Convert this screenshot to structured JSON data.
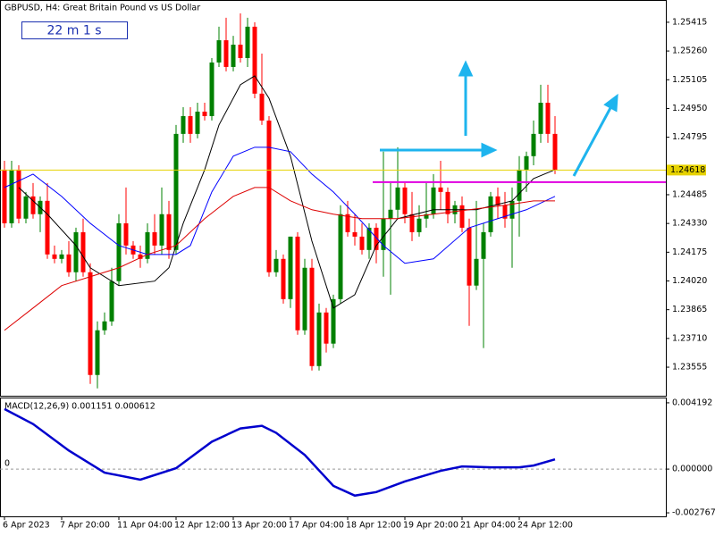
{
  "chart_data": [
    {
      "type": "candlestick",
      "title": "GBPUSD, H4:  Great Britain Pound vs US Dollar",
      "timer": "22 m 1 s",
      "categories": [
        "6 Apr 2023",
        null,
        null,
        null,
        null,
        null,
        null,
        null,
        "7 Apr 20:00",
        null,
        null,
        null,
        null,
        null,
        null,
        null,
        "11 Apr 04:00",
        null,
        null,
        null,
        null,
        null,
        null,
        null,
        "12 Apr 12:00",
        null,
        null,
        null,
        null,
        null,
        null,
        null,
        "13 Apr 20:00",
        null,
        null,
        null,
        null,
        null,
        null,
        null,
        "17 Apr 04:00",
        null,
        null,
        null,
        null,
        null,
        null,
        null,
        "18 Apr 12:00",
        null,
        null,
        null,
        null,
        null,
        null,
        null,
        "19 Apr 20:00",
        null,
        null,
        null,
        null,
        null,
        null,
        null,
        "21 Apr 04:00",
        null,
        null,
        null,
        null,
        null,
        null,
        null,
        "24 Apr 12:00",
        null,
        null,
        null,
        null,
        null
      ],
      "open": [
        1.2462,
        1.24331,
        1.2462,
        1.24356,
        1.24476,
        1.2438,
        1.24452,
        1.24163,
        1.24139,
        1.24163,
        1.24067,
        1.24283,
        1.24067,
        1.23513,
        1.23754,
        1.23802,
        1.24019,
        1.24331,
        1.24211,
        1.24163,
        1.24139,
        1.24283,
        1.24211,
        1.2438,
        1.24187,
        1.24813,
        1.24909,
        1.24813,
        1.24933,
        1.24909,
        1.25198,
        1.25318,
        1.25174,
        1.25294,
        1.25222,
        1.25391,
        1.2503,
        1.24885,
        1.24067,
        1.24139,
        1.23922,
        1.24259,
        1.23754,
        1.24091,
        1.23561,
        1.2385,
        1.23682,
        1.23922,
        1.2438,
        1.24283,
        1.24259,
        1.24187,
        1.24307,
        1.24187,
        1.24356,
        1.24404,
        1.24524,
        1.2438,
        1.24283,
        1.24356,
        1.2438,
        1.24524,
        1.245,
        1.2438,
        1.24428,
        1.24307,
        1.23995,
        1.24139,
        1.24283,
        1.24476,
        1.24428,
        1.24356,
        1.24452,
        1.2462,
        1.24693,
        1.24813,
        1.24981,
        1.24813
      ],
      "high": [
        1.24668,
        1.24668,
        1.24644,
        1.245,
        1.24548,
        1.24476,
        1.24548,
        1.24211,
        1.24187,
        1.24235,
        1.24307,
        1.24356,
        1.24115,
        1.23802,
        1.2385,
        1.24091,
        1.2438,
        1.24524,
        1.24235,
        1.24211,
        1.24331,
        1.2438,
        1.24524,
        1.24452,
        1.24861,
        1.24957,
        1.24957,
        1.24981,
        1.24981,
        1.25222,
        1.25391,
        1.25439,
        1.25342,
        1.25463,
        1.25439,
        1.25415,
        1.25246,
        1.24909,
        1.24187,
        1.24163,
        1.24259,
        1.24283,
        1.24139,
        1.24139,
        1.23898,
        1.23874,
        1.23946,
        1.24428,
        1.24452,
        1.2438,
        1.24331,
        1.24331,
        1.24331,
        1.24717,
        1.24548,
        1.24741,
        1.24548,
        1.245,
        1.24428,
        1.24548,
        1.24596,
        1.24668,
        1.24524,
        1.24452,
        1.24476,
        1.24356,
        1.24452,
        1.24331,
        1.245,
        1.24524,
        1.245,
        1.24524,
        1.24693,
        1.24717,
        1.24885,
        1.25078,
        1.25078,
        1.24909
      ],
      "low": [
        1.24307,
        1.24307,
        1.24331,
        1.24331,
        1.24356,
        1.24283,
        1.24139,
        1.24115,
        1.24115,
        1.24043,
        1.24019,
        1.24043,
        1.23465,
        1.23441,
        1.2373,
        1.23778,
        1.23995,
        1.24163,
        1.24139,
        1.24091,
        1.24115,
        1.24163,
        1.24163,
        1.24139,
        1.24163,
        1.24765,
        1.24765,
        1.24789,
        1.24885,
        1.24885,
        1.25174,
        1.2515,
        1.2515,
        1.25198,
        1.25174,
        1.25005,
        1.24861,
        1.24043,
        1.24043,
        1.23898,
        1.23874,
        1.2373,
        1.2373,
        1.23537,
        1.23537,
        1.23634,
        1.23658,
        1.23898,
        1.24259,
        1.24211,
        1.24163,
        1.24139,
        1.24115,
        1.24043,
        1.23946,
        1.24356,
        1.24331,
        1.24235,
        1.24259,
        1.24307,
        1.24356,
        1.24404,
        1.24331,
        1.24331,
        1.24283,
        1.23778,
        1.23971,
        1.23658,
        1.24259,
        1.24356,
        1.24307,
        1.24091,
        1.24259,
        1.245,
        1.24644,
        1.24765,
        1.24765,
        1.24596
      ],
      "close": [
        1.24331,
        1.2462,
        1.24356,
        1.24476,
        1.2438,
        1.24452,
        1.24163,
        1.24139,
        1.24163,
        1.24067,
        1.24283,
        1.24067,
        1.23513,
        1.23754,
        1.23802,
        1.24019,
        1.24331,
        1.24211,
        1.24163,
        1.24139,
        1.24283,
        1.24211,
        1.2438,
        1.24187,
        1.24813,
        1.24909,
        1.24813,
        1.24933,
        1.24909,
        1.25198,
        1.25318,
        1.25174,
        1.25294,
        1.25222,
        1.25391,
        1.2503,
        1.24885,
        1.24067,
        1.24139,
        1.23922,
        1.24259,
        1.23754,
        1.24091,
        1.23561,
        1.2385,
        1.23682,
        1.23922,
        1.2438,
        1.24283,
        1.24259,
        1.24187,
        1.24307,
        1.24187,
        1.24356,
        1.24404,
        1.24524,
        1.2438,
        1.24283,
        1.24356,
        1.2438,
        1.24524,
        1.245,
        1.2438,
        1.24428,
        1.24307,
        1.23995,
        1.24139,
        1.24283,
        1.24476,
        1.24428,
        1.24356,
        1.24452,
        1.2462,
        1.24693,
        1.24813,
        1.24981,
        1.24813,
        1.24618
      ],
      "up_color": "#008000",
      "down_color": "#ff0000",
      "lines": [
        {
          "color": "#000000",
          "x": [
            2,
            6,
            10,
            12,
            16,
            21,
            23,
            25,
            28,
            30,
            33,
            35,
            37,
            40,
            43,
            46,
            49,
            52,
            55,
            60,
            66,
            71,
            74,
            77
          ],
          "values": [
            1.24524,
            1.2438,
            1.24211,
            1.24091,
            1.23995,
            1.24019,
            1.24091,
            1.24331,
            1.2462,
            1.24861,
            1.25078,
            1.25126,
            1.25005,
            1.24693,
            1.24235,
            1.23874,
            1.23946,
            1.24211,
            1.24356,
            1.24404,
            1.24404,
            1.24452,
            1.24572,
            1.2462
          ]
        },
        {
          "color": "#0000ff",
          "x": [
            0,
            4,
            8,
            12,
            16,
            20,
            24,
            26,
            29,
            32,
            35,
            37,
            40,
            43,
            46,
            49,
            53,
            56,
            60,
            65,
            69,
            73,
            77
          ],
          "values": [
            1.24524,
            1.24596,
            1.24476,
            1.24331,
            1.24211,
            1.24163,
            1.24163,
            1.24211,
            1.245,
            1.24693,
            1.24741,
            1.24741,
            1.24717,
            1.24596,
            1.245,
            1.2438,
            1.24211,
            1.24115,
            1.24139,
            1.24307,
            1.24356,
            1.24404,
            1.24476
          ]
        },
        {
          "color": "#dd0000",
          "x": [
            0,
            4,
            8,
            12,
            16,
            20,
            24,
            28,
            32,
            35,
            37,
            40,
            43,
            46,
            50,
            55,
            60,
            65,
            70,
            74,
            77
          ],
          "values": [
            1.23754,
            1.23874,
            1.23995,
            1.24043,
            1.24091,
            1.24163,
            1.24211,
            1.24356,
            1.24476,
            1.24524,
            1.24524,
            1.24452,
            1.24404,
            1.2438,
            1.24356,
            1.24356,
            1.2438,
            1.24404,
            1.24428,
            1.24452,
            1.24452
          ]
        }
      ],
      "last_price": 1.24618,
      "last_price_color": "#e6d200",
      "hline": {
        "value": 1.24553,
        "color": "#e000e0"
      },
      "ylim": [
        1.23401,
        1.25535
      ],
      "yticks": [
        1.25415,
        {
          "value": 1.2526,
          "label": "1.25260"
        },
        1.25105,
        {
          "value": 1.2495,
          "label": "1.24950"
        },
        1.24795,
        1.24485,
        {
          "value": 1.2433,
          "label": "1.24330"
        },
        1.24175,
        {
          "value": 1.2402,
          "label": "1.24020"
        },
        1.23865,
        {
          "value": 1.2371,
          "label": "1.23710"
        },
        1.23555
      ]
    },
    {
      "type": "line",
      "title": "MACD(12,26,9) 0.001151 0.000612",
      "color": "#0000cd",
      "x": [
        0,
        4,
        9,
        14,
        19,
        24,
        29,
        33,
        36,
        38,
        42,
        46,
        49,
        52,
        56,
        61,
        64,
        68,
        72,
        74,
        77
      ],
      "values": [
        0.003801,
        0.002851,
        0.001174,
        -0.000224,
        -0.000671,
        5.6e-05,
        0.001733,
        0.002571,
        0.002739,
        0.002292,
        0.000894,
        -0.001062,
        -0.001677,
        -0.001453,
        -0.000783,
        -0.000112,
        0.000168,
        0.000112,
        0.000112,
        0.000224,
        0.000615
      ],
      "levels": [
        {
          "value": 0,
          "label": "0"
        }
      ],
      "ylim": [
        -0.00299,
        0.004527
      ],
      "yticks": [
        0.004192,
        {
          "value": 0,
          "label": "0.000000"
        },
        -0.002767
      ]
    }
  ]
}
